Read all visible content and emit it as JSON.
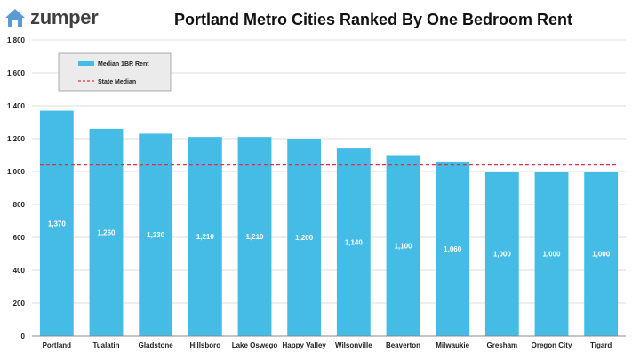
{
  "brand": {
    "name": "zumper",
    "icon": "house-icon",
    "color": "#5b9bd5"
  },
  "chart_data": {
    "type": "bar",
    "title": "Portland Metro Cities Ranked By One Bedroom Rent",
    "categories": [
      "Portland",
      "Tualatin",
      "Gladstone",
      "Hillsboro",
      "Lake Oswego",
      "Happy Valley",
      "Wilsonville",
      "Beaverton",
      "Milwaukie",
      "Gresham",
      "Oregon City",
      "Tigard"
    ],
    "series": [
      {
        "name": "Median 1BR Rent",
        "values": [
          1370,
          1260,
          1230,
          1210,
          1210,
          1200,
          1140,
          1100,
          1060,
          1000,
          1000,
          1000
        ]
      }
    ],
    "data_labels": [
      "1,370",
      "1,260",
      "1,230",
      "1,210",
      "1,210",
      "1,200",
      "1,140",
      "1,100",
      "1,060",
      "1,000",
      "1,000",
      "1,000"
    ],
    "reference_line": {
      "name": "State Median",
      "value": 1040,
      "style": "dashed",
      "color": "#d9304a"
    },
    "ylim": [
      0,
      1800
    ],
    "yticks": [
      0,
      200,
      400,
      600,
      800,
      1000,
      1200,
      1400,
      1600,
      1800
    ],
    "ytick_labels": [
      "0",
      "200",
      "400",
      "600",
      "800",
      "1,000",
      "1,200",
      "1,400",
      "1,600",
      "1,800"
    ],
    "xlabel": "",
    "ylabel": "",
    "grid": true,
    "legend_position": "top-left",
    "colors": {
      "bar": "#45bce6",
      "label": "#ffffff",
      "grid": "#dcdcdc",
      "legend_bg": "#ebebeb"
    }
  }
}
